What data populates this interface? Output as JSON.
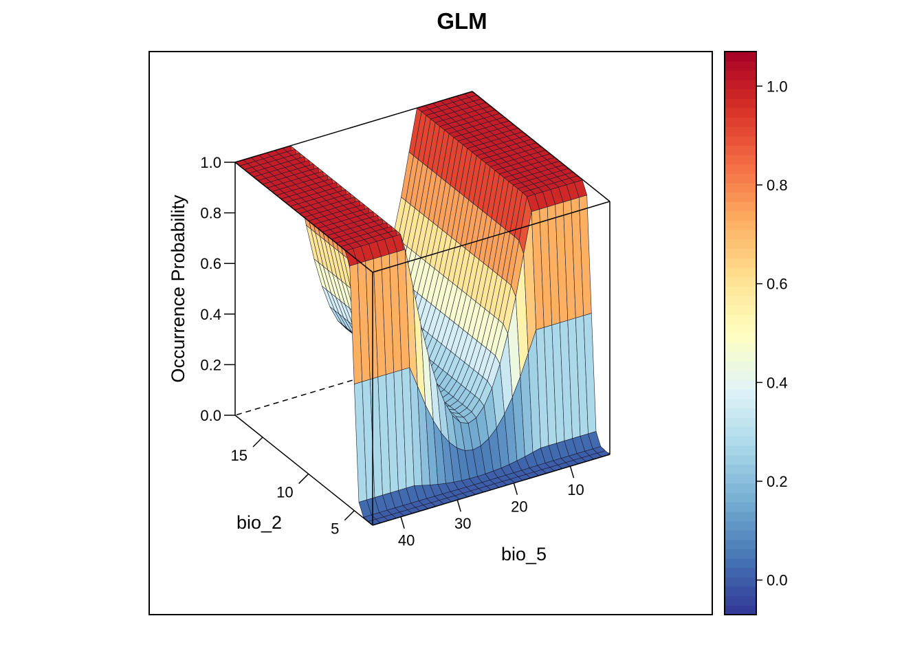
{
  "chart_data": {
    "type": "surface",
    "title": "GLM",
    "xlabel": "bio_2",
    "ylabel": "bio_5",
    "zlabel": "Occurrence Probability",
    "x_ticks": [
      "5",
      "10",
      "15"
    ],
    "x_tick_values": [
      5,
      10,
      15
    ],
    "y_ticks": [
      "10",
      "20",
      "30",
      "40"
    ],
    "y_tick_values": [
      10,
      20,
      30,
      40
    ],
    "z_ticks": [
      "0.0",
      "0.2",
      "0.4",
      "0.6",
      "0.8",
      "1.0"
    ],
    "z_tick_values": [
      0,
      0.2,
      0.4,
      0.6,
      0.8,
      1.0
    ],
    "zlim": [
      0,
      1
    ],
    "surface_summary": {
      "plateau_probability": 1.0,
      "valley_min_probability": 0.2,
      "valley_center_bio_5": 24,
      "low_region_probability": 0.0,
      "bio_2_threshold": 5
    },
    "colorbar": {
      "ticks": [
        "0.0",
        "0.2",
        "0.4",
        "0.6",
        "0.8",
        "1.0"
      ],
      "tick_values": [
        0,
        0.2,
        0.4,
        0.6,
        0.8,
        1.0
      ],
      "range": [
        -0.07,
        1.07
      ],
      "colors": [
        "#313695",
        "#4575b4",
        "#74add1",
        "#abd9e9",
        "#e0f3f8",
        "#ffffbf",
        "#fee090",
        "#fdae61",
        "#f46d43",
        "#d73027",
        "#a50026"
      ]
    }
  }
}
